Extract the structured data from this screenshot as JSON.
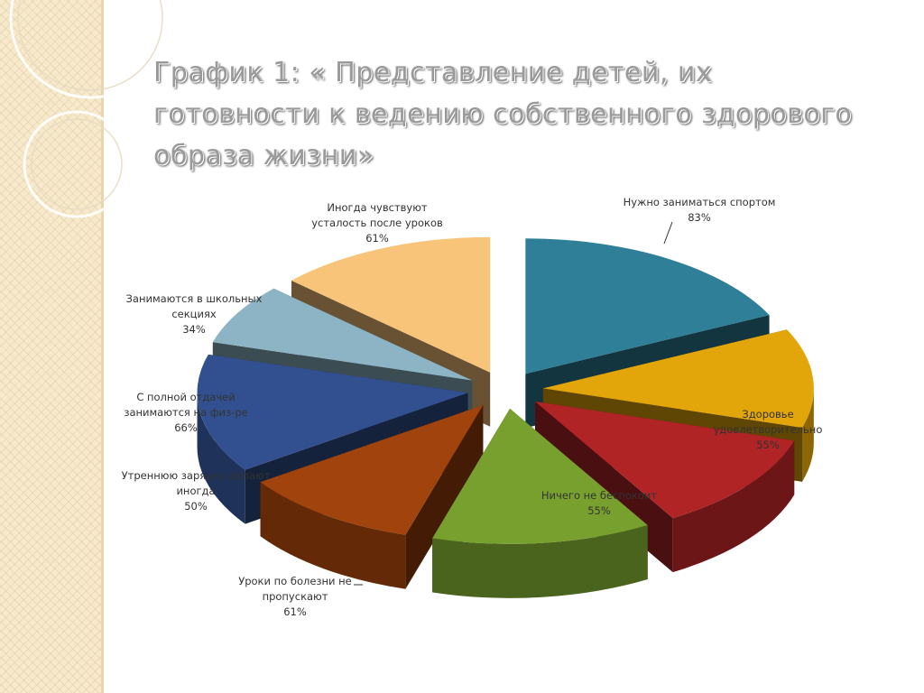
{
  "chart_data": {
    "type": "pie",
    "title": "График 1: « Представление детей, их готовности к ведению собственного здорового образа жизни»",
    "slices": [
      {
        "label": "Нужно заниматься спортом",
        "value_label": "83%",
        "value": 83,
        "color": "#2e7f97"
      },
      {
        "label": "Здоровье удовлетворительно",
        "value_label": "55%",
        "value": 55,
        "color": "#e3a60a"
      },
      {
        "label": "Ничего не беспокоит",
        "value_label": "55%",
        "value": 55,
        "color": "#b02426"
      },
      {
        "label": "Уроки по болезни не пропускают",
        "value_label": "61%",
        "value": 61,
        "color": "#78a02e"
      },
      {
        "label": "Утреннюю зарядку делают иногда",
        "value_label": "50%",
        "value": 50,
        "color": "#a1430c"
      },
      {
        "label": "С полной отдачей занимаются на физ-ре",
        "value_label": "66%",
        "value": 66,
        "color": "#32508f"
      },
      {
        "label": "Занимаются в школьных секциях",
        "value_label": "34%",
        "value": 34,
        "color": "#8cb4c4"
      },
      {
        "label": "Иногда чувствуют усталость после уроков",
        "value_label": "61%",
        "value": 61,
        "color": "#f8c47a"
      }
    ],
    "legend": "none",
    "style": "3d-exploded"
  }
}
